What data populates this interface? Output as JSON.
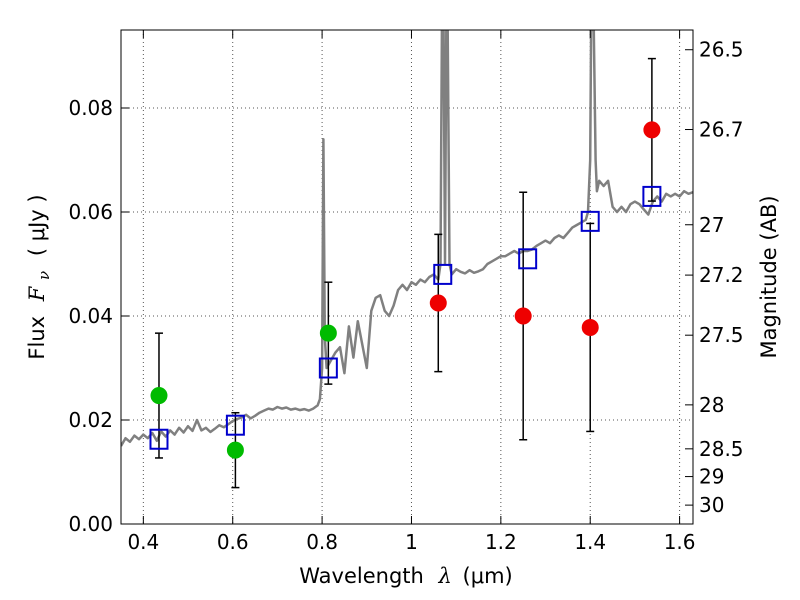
{
  "chart_data": {
    "type": "scatter",
    "title": "",
    "xlabel_prefix": "Wavelength",
    "xlabel_symbol": "λ",
    "xlabel_unit": "(μm)",
    "ylabel_prefix": "Flux",
    "ylabel_symbol": "F",
    "ylabel_subscript": "ν",
    "ylabel_unit": "( μJy )",
    "y2label": "Magnitude (AB)",
    "xlim": [
      0.35,
      1.63
    ],
    "ylim": [
      0.0,
      0.095
    ],
    "grid": true,
    "x_ticks": [
      0.4,
      0.6,
      0.8,
      1.0,
      1.2,
      1.4,
      1.6
    ],
    "x_tick_labels": [
      "0.4",
      "0.6",
      "0.8",
      "1",
      "1.2",
      "1.4",
      "1.6"
    ],
    "y_ticks": [
      0.0,
      0.02,
      0.04,
      0.06,
      0.08
    ],
    "y_tick_labels": [
      "0.00",
      "0.02",
      "0.04",
      "0.06",
      "0.08"
    ],
    "mag_ticks": [
      {
        "mag": 26.5,
        "label": "26.5"
      },
      {
        "mag": 26.7,
        "label": "26.7"
      },
      {
        "mag": 27.0,
        "label": "27"
      },
      {
        "mag": 27.2,
        "label": "27.2"
      },
      {
        "mag": 27.5,
        "label": "27.5"
      },
      {
        "mag": 28.0,
        "label": "28"
      },
      {
        "mag": 28.5,
        "label": "28.5"
      },
      {
        "mag": 29.0,
        "label": "29"
      },
      {
        "mag": 30.0,
        "label": "30"
      }
    ],
    "colors": {
      "model": "#808080",
      "optical": "#00bb00",
      "infrared": "#ee0000",
      "model_box": "#0000cc",
      "errorbar": "#000000",
      "grid": "#555555"
    },
    "series": [
      {
        "kind": "model_spectrum",
        "color": "#808080",
        "points": [
          [
            0.35,
            0.015
          ],
          [
            0.36,
            0.0165
          ],
          [
            0.37,
            0.0158
          ],
          [
            0.38,
            0.017
          ],
          [
            0.39,
            0.0163
          ],
          [
            0.4,
            0.0172
          ],
          [
            0.41,
            0.0165
          ],
          [
            0.42,
            0.0175
          ],
          [
            0.43,
            0.016
          ],
          [
            0.44,
            0.0178
          ],
          [
            0.45,
            0.0168
          ],
          [
            0.46,
            0.018
          ],
          [
            0.47,
            0.0172
          ],
          [
            0.48,
            0.0185
          ],
          [
            0.49,
            0.0176
          ],
          [
            0.5,
            0.0188
          ],
          [
            0.51,
            0.0179
          ],
          [
            0.52,
            0.02
          ],
          [
            0.53,
            0.018
          ],
          [
            0.54,
            0.0185
          ],
          [
            0.55,
            0.0177
          ],
          [
            0.56,
            0.0183
          ],
          [
            0.57,
            0.019
          ],
          [
            0.58,
            0.0186
          ],
          [
            0.59,
            0.0192
          ],
          [
            0.6,
            0.0198
          ],
          [
            0.61,
            0.0202
          ],
          [
            0.62,
            0.0205
          ],
          [
            0.63,
            0.021
          ],
          [
            0.64,
            0.0203
          ],
          [
            0.65,
            0.0208
          ],
          [
            0.66,
            0.0214
          ],
          [
            0.67,
            0.0218
          ],
          [
            0.68,
            0.0222
          ],
          [
            0.69,
            0.022
          ],
          [
            0.7,
            0.0225
          ],
          [
            0.71,
            0.0222
          ],
          [
            0.72,
            0.0224
          ],
          [
            0.73,
            0.022
          ],
          [
            0.74,
            0.0222
          ],
          [
            0.75,
            0.0219
          ],
          [
            0.76,
            0.0221
          ],
          [
            0.77,
            0.0218
          ],
          [
            0.78,
            0.0222
          ],
          [
            0.79,
            0.0228
          ],
          [
            0.795,
            0.024
          ],
          [
            0.8,
            0.03
          ],
          [
            0.803,
            0.074
          ],
          [
            0.806,
            0.036
          ],
          [
            0.81,
            0.03
          ],
          [
            0.82,
            0.0315
          ],
          [
            0.83,
            0.033
          ],
          [
            0.84,
            0.034
          ],
          [
            0.85,
            0.029
          ],
          [
            0.86,
            0.038
          ],
          [
            0.87,
            0.032
          ],
          [
            0.88,
            0.039
          ],
          [
            0.89,
            0.0345
          ],
          [
            0.9,
            0.03
          ],
          [
            0.91,
            0.041
          ],
          [
            0.92,
            0.0435
          ],
          [
            0.93,
            0.044
          ],
          [
            0.94,
            0.041
          ],
          [
            0.95,
            0.04
          ],
          [
            0.96,
            0.042
          ],
          [
            0.97,
            0.045
          ],
          [
            0.98,
            0.046
          ],
          [
            0.99,
            0.045
          ],
          [
            1.0,
            0.0465
          ],
          [
            1.01,
            0.046
          ],
          [
            1.02,
            0.047
          ],
          [
            1.03,
            0.0465
          ],
          [
            1.04,
            0.0475
          ],
          [
            1.05,
            0.048
          ],
          [
            1.06,
            0.047
          ],
          [
            1.065,
            0.05
          ],
          [
            1.068,
            0.095
          ],
          [
            1.072,
            0.095
          ],
          [
            1.075,
            0.05
          ],
          [
            1.078,
            0.095
          ],
          [
            1.081,
            0.095
          ],
          [
            1.085,
            0.05
          ],
          [
            1.09,
            0.048
          ],
          [
            1.1,
            0.049
          ],
          [
            1.11,
            0.0485
          ],
          [
            1.12,
            0.0482
          ],
          [
            1.13,
            0.0488
          ],
          [
            1.14,
            0.0483
          ],
          [
            1.15,
            0.0486
          ],
          [
            1.16,
            0.049
          ],
          [
            1.17,
            0.05
          ],
          [
            1.18,
            0.0505
          ],
          [
            1.19,
            0.051
          ],
          [
            1.2,
            0.0515
          ],
          [
            1.21,
            0.0515
          ],
          [
            1.22,
            0.052
          ],
          [
            1.23,
            0.0525
          ],
          [
            1.24,
            0.052
          ],
          [
            1.25,
            0.0525
          ],
          [
            1.26,
            0.0525
          ],
          [
            1.27,
            0.0528
          ],
          [
            1.28,
            0.0535
          ],
          [
            1.29,
            0.054
          ],
          [
            1.3,
            0.0545
          ],
          [
            1.31,
            0.054
          ],
          [
            1.32,
            0.055
          ],
          [
            1.33,
            0.0555
          ],
          [
            1.34,
            0.055
          ],
          [
            1.35,
            0.056
          ],
          [
            1.36,
            0.057
          ],
          [
            1.37,
            0.0575
          ],
          [
            1.38,
            0.058
          ],
          [
            1.39,
            0.0585
          ],
          [
            1.395,
            0.06
          ],
          [
            1.4,
            0.07
          ],
          [
            1.402,
            0.095
          ],
          [
            1.408,
            0.095
          ],
          [
            1.412,
            0.07
          ],
          [
            1.415,
            0.064
          ],
          [
            1.42,
            0.066
          ],
          [
            1.43,
            0.065
          ],
          [
            1.44,
            0.066
          ],
          [
            1.45,
            0.061
          ],
          [
            1.46,
            0.06
          ],
          [
            1.47,
            0.061
          ],
          [
            1.48,
            0.06
          ],
          [
            1.49,
            0.0615
          ],
          [
            1.5,
            0.062
          ],
          [
            1.51,
            0.0615
          ],
          [
            1.52,
            0.0605
          ],
          [
            1.53,
            0.0595
          ],
          [
            1.54,
            0.062
          ],
          [
            1.55,
            0.063
          ],
          [
            1.56,
            0.062
          ],
          [
            1.57,
            0.0635
          ],
          [
            1.58,
            0.063
          ],
          [
            1.59,
            0.0635
          ],
          [
            1.6,
            0.063
          ],
          [
            1.61,
            0.064
          ],
          [
            1.62,
            0.0635
          ],
          [
            1.63,
            0.0638
          ]
        ]
      },
      {
        "kind": "model_photometry",
        "color": "#0000cc",
        "points": [
          {
            "x": 0.435,
            "y": 0.0163
          },
          {
            "x": 0.606,
            "y": 0.019
          },
          {
            "x": 0.814,
            "y": 0.03
          },
          {
            "x": 1.07,
            "y": 0.048
          },
          {
            "x": 1.26,
            "y": 0.051
          },
          {
            "x": 1.4,
            "y": 0.0582
          },
          {
            "x": 1.538,
            "y": 0.063
          }
        ]
      },
      {
        "kind": "observed_optical",
        "color": "#00bb00",
        "points": [
          {
            "x": 0.435,
            "y": 0.0247,
            "err": 0.012
          },
          {
            "x": 0.606,
            "y": 0.0142,
            "err": 0.0072
          },
          {
            "x": 0.814,
            "y": 0.0367,
            "err": 0.0098
          }
        ]
      },
      {
        "kind": "observed_infrared",
        "color": "#ee0000",
        "points": [
          {
            "x": 1.06,
            "y": 0.0425,
            "err": 0.0132
          },
          {
            "x": 1.25,
            "y": 0.04,
            "err": 0.0238
          },
          {
            "x": 1.4,
            "y": 0.0378,
            "err": 0.02
          },
          {
            "x": 1.538,
            "y": 0.0758,
            "err": 0.0137
          }
        ]
      }
    ]
  }
}
